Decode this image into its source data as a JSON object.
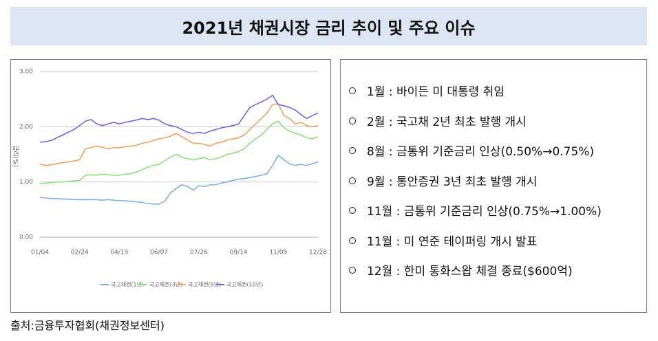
{
  "header": {
    "title": "2021년 채권시장 금리 추이 및 주요 이슈"
  },
  "chart_data": {
    "type": "line",
    "y_label": "금리(%)",
    "categories": [
      "01/04",
      null,
      null,
      null,
      null,
      null,
      null,
      "02/24",
      null,
      null,
      null,
      null,
      null,
      null,
      "04/15",
      null,
      null,
      null,
      null,
      null,
      null,
      "06/07",
      null,
      null,
      null,
      null,
      null,
      null,
      "07/26",
      null,
      null,
      null,
      null,
      null,
      null,
      "09/14",
      null,
      null,
      null,
      null,
      null,
      null,
      "11/09",
      null,
      null,
      null,
      null,
      null,
      null,
      "12/28"
    ],
    "series": [
      {
        "name": "국고채권(1년)",
        "color": "#7fb0e0",
        "values": [
          0.72,
          0.71,
          0.7,
          0.7,
          0.69,
          0.69,
          0.68,
          0.68,
          0.68,
          0.68,
          0.68,
          0.67,
          0.68,
          0.67,
          0.66,
          0.66,
          0.65,
          0.64,
          0.63,
          0.61,
          0.6,
          0.6,
          0.65,
          0.8,
          0.88,
          0.95,
          0.92,
          0.85,
          0.93,
          0.92,
          0.95,
          0.95,
          0.98,
          1.0,
          1.03,
          1.05,
          1.06,
          1.08,
          1.1,
          1.12,
          1.15,
          1.3,
          1.48,
          1.4,
          1.33,
          1.3,
          1.32,
          1.3,
          1.33,
          1.36
        ]
      },
      {
        "name": "국고채권(3년)",
        "color": "#8de07a",
        "values": [
          0.97,
          0.98,
          0.99,
          1.0,
          1.0,
          1.01,
          1.02,
          1.03,
          1.12,
          1.13,
          1.12,
          1.14,
          1.13,
          1.12,
          1.12,
          1.14,
          1.15,
          1.18,
          1.22,
          1.27,
          1.3,
          1.32,
          1.38,
          1.45,
          1.5,
          1.45,
          1.42,
          1.4,
          1.42,
          1.44,
          1.4,
          1.42,
          1.45,
          1.5,
          1.52,
          1.55,
          1.6,
          1.7,
          1.78,
          1.85,
          1.95,
          2.05,
          2.1,
          1.98,
          1.92,
          1.88,
          1.85,
          1.8,
          1.78,
          1.82
        ]
      },
      {
        "name": "국고채권(5년)",
        "color": "#f4a060",
        "values": [
          1.32,
          1.3,
          1.31,
          1.33,
          1.35,
          1.36,
          1.38,
          1.4,
          1.6,
          1.62,
          1.65,
          1.63,
          1.6,
          1.62,
          1.62,
          1.64,
          1.65,
          1.66,
          1.7,
          1.72,
          1.75,
          1.78,
          1.8,
          1.83,
          1.88,
          1.82,
          1.76,
          1.7,
          1.7,
          1.68,
          1.65,
          1.7,
          1.72,
          1.76,
          1.78,
          1.8,
          1.85,
          1.95,
          2.05,
          2.15,
          2.25,
          2.4,
          2.42,
          2.2,
          2.15,
          2.05,
          2.08,
          2.02,
          2.0,
          2.02
        ]
      },
      {
        "name": "국고채권(10년)",
        "color": "#6a6ae0",
        "values": [
          1.72,
          1.73,
          1.75,
          1.8,
          1.85,
          1.9,
          1.95,
          2.02,
          2.1,
          2.13,
          2.05,
          2.02,
          2.05,
          2.08,
          2.05,
          2.08,
          2.1,
          2.12,
          2.15,
          2.13,
          2.15,
          2.12,
          2.05,
          2.02,
          2.0,
          1.95,
          1.9,
          1.88,
          1.9,
          1.88,
          1.92,
          1.95,
          1.98,
          2.0,
          2.02,
          2.05,
          2.2,
          2.35,
          2.4,
          2.45,
          2.5,
          2.57,
          2.4,
          2.38,
          2.35,
          2.3,
          2.22,
          2.15,
          2.2,
          2.25
        ]
      }
    ],
    "ylim": [
      0,
      3
    ],
    "yticks": [
      {
        "value": 0,
        "label": "0.00"
      },
      {
        "value": 1,
        "label": "1.00"
      },
      {
        "value": 2,
        "label": "2.00"
      },
      {
        "value": 3,
        "label": "3.00"
      }
    ],
    "grid": true
  },
  "issues": [
    "1월 : 바이든 미 대통령 취임",
    "2월 : 국고채 2년 최초 발행 개시",
    "8월 : 금통위 기준금리 인상(0.50%→0.75%)",
    "9월 : 통안증권 3년 최초 발행 개시",
    "11월 : 금통위 기준금리 인상(0.75%→1.00%)",
    "11월 : 미 연준 테이퍼링 개시 발표",
    "12월 : 한미 통화스왑 체결 종료($600억)"
  ],
  "source": "출처:금융투자협회(채권정보센터)"
}
